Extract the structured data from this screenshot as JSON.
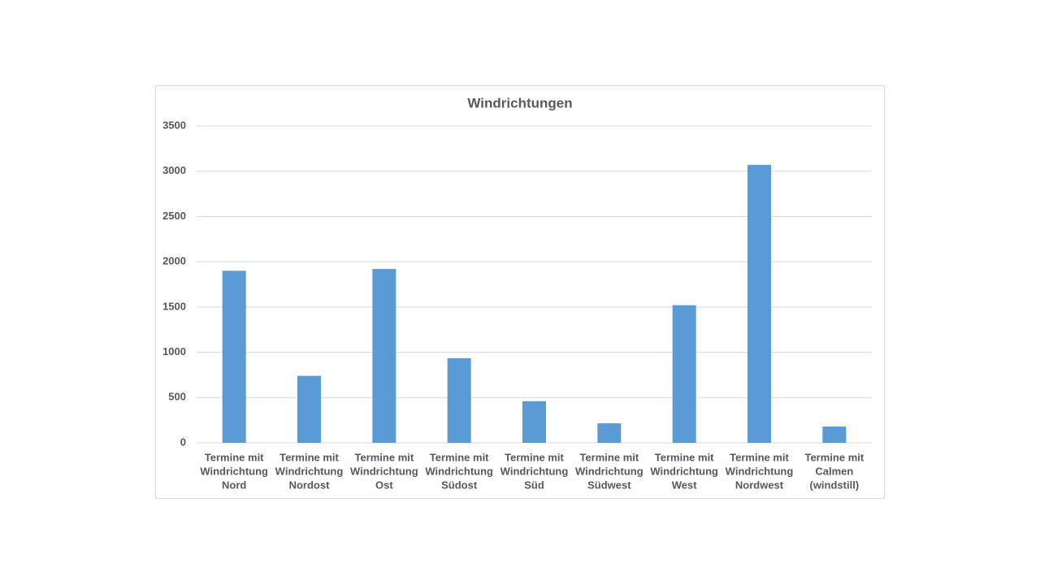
{
  "chart_data": {
    "type": "bar",
    "title": "Windrichtungen",
    "categories": [
      [
        "Termine mit",
        "Windrichtung",
        "Nord"
      ],
      [
        "Termine mit",
        "Windrichtung",
        "Nordost"
      ],
      [
        "Termine mit",
        "Windrichtung",
        "Ost"
      ],
      [
        "Termine mit",
        "Windrichtung",
        "Südost"
      ],
      [
        "Termine mit",
        "Windrichtung",
        "Süd"
      ],
      [
        "Termine mit",
        "Windrichtung",
        "Südwest"
      ],
      [
        "Termine mit",
        "Windrichtung",
        "West"
      ],
      [
        "Termine mit",
        "Windrichtung",
        "Nordwest"
      ],
      [
        "Termine mit",
        "Calmen",
        "(windstill)"
      ]
    ],
    "values": [
      1900,
      740,
      1920,
      935,
      460,
      215,
      1520,
      3070,
      180
    ],
    "color": "#5b9bd5",
    "ylim": [
      0,
      3500
    ],
    "yticks": [
      0,
      500,
      1000,
      1500,
      2000,
      2500,
      3000,
      3500
    ],
    "grid": true
  }
}
